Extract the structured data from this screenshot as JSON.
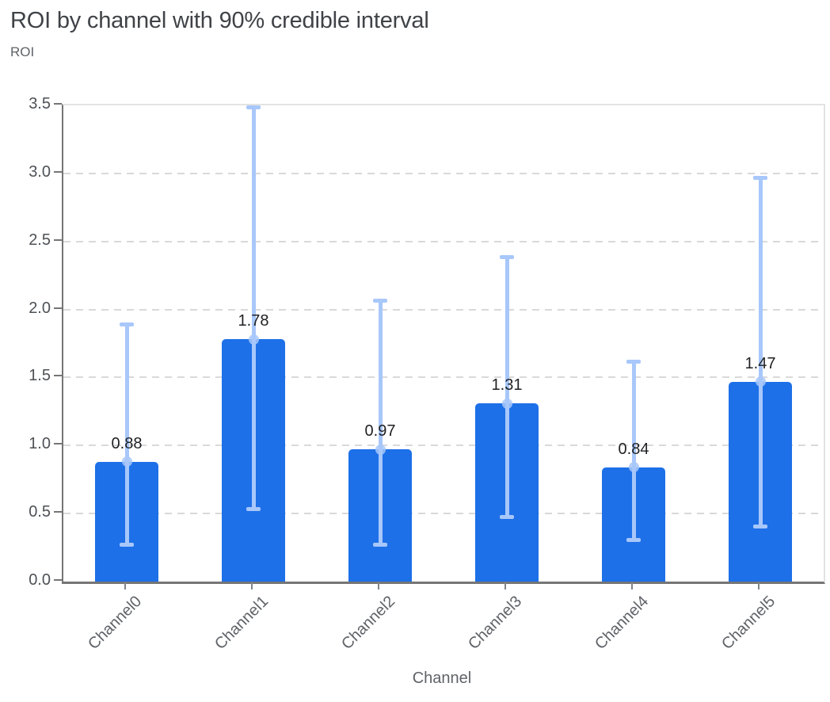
{
  "chart_data": {
    "type": "bar",
    "title": "ROI by channel with 90% credible interval",
    "xlabel": "Channel",
    "ylabel": "ROI",
    "categories": [
      "Channel0",
      "Channel1",
      "Channel2",
      "Channel3",
      "Channel4",
      "Channel5"
    ],
    "series": [
      {
        "name": "ROI",
        "values": [
          0.88,
          1.78,
          0.97,
          1.31,
          0.84,
          1.47
        ]
      }
    ],
    "bar_labels": [
      "0.88",
      "1.78",
      "0.97",
      "1.31",
      "0.84",
      "1.47"
    ],
    "error_bars": {
      "kind": "90% credible interval",
      "lower": [
        0.27,
        0.53,
        0.27,
        0.47,
        0.3,
        0.4
      ],
      "upper": [
        1.89,
        3.49,
        2.07,
        2.39,
        1.62,
        2.97
      ]
    },
    "ylim": [
      0,
      3.5
    ],
    "ytick_labels": [
      "0.0",
      "0.5",
      "1.0",
      "1.5",
      "2.0",
      "2.5",
      "3.0",
      "3.5"
    ],
    "grid": "horizontal-dashed",
    "legend": "none",
    "colors": {
      "bar": "#1d70e8",
      "error_bar": "#a8c7fa",
      "title_text": "#3f4347",
      "axis_text": "#5f6368",
      "value_label": "#1f2023",
      "axis_line": "#757575",
      "gridline": "#d9d9d9",
      "plot_border": "#e3e3e3",
      "background": "#ffffff"
    }
  }
}
